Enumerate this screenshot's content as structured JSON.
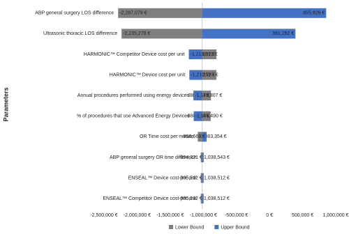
{
  "chart_data": {
    "type": "tornado",
    "y_label": "Parameters",
    "categories": [
      "ABP general surgery LOS difference",
      "Ultrasonic thoracic  LOS difference",
      "HARMONIC™ Competitor Device cost per unit",
      "HARMONIC™ Device cost per unit",
      "Annual procedures performed using energy devices",
      "% of procedures that use Advanced Energy Devices",
      "OR Time cost per minute",
      "ABP general surgery OR time difference",
      "ENSEAL™ Device cost per unit",
      "ENSEAL™ Competitor Device cost per unit"
    ],
    "series": [
      {
        "name": "Lower Bound",
        "color": "#7f7f7f",
        "values": [
          -2287079,
          -2235276,
          -802052,
          -802252,
          -884117,
          -888534,
          -1083354,
          -1038543,
          -1038512,
          -1038512
        ],
        "value_labels": [
          "-2,287,079 €",
          "-2,235,276 €",
          "-802,052 €",
          "-802,252 €",
          "-884,117 €",
          "-888,534 €",
          "-1,083,354 €",
          "-1,038,543 €",
          "-1,038,512 €",
          "-1,038,512 €"
        ]
      },
      {
        "name": "Upper Bound",
        "color": "#4472c4",
        "values": [
          855826,
          391252,
          -1219013,
          -1210787,
          -1149807,
          -1145490,
          -950669,
          -994371,
          -995512,
          -995512
        ],
        "value_labels": [
          "855,826 €",
          "391,252 €",
          "-1,219,013 €",
          "-1,210,787 €",
          "-1,149,807 €",
          "-1,145,490 €",
          "-950,669 €",
          "-994,371 €",
          "-995,512 €",
          "-995,512 €"
        ]
      }
    ],
    "xlim": [
      -2500000,
      1000000
    ],
    "xticks": [
      {
        "value": -2500000,
        "label": "-2,500,000 €"
      },
      {
        "value": -2000000,
        "label": "-2,000,000 €"
      },
      {
        "value": -1500000,
        "label": "-1,500,000 €"
      },
      {
        "value": -1000000,
        "label": "-1,000,000 €"
      },
      {
        "value": -500000,
        "label": "-500,000 €"
      },
      {
        "value": 0,
        "label": "0 €"
      },
      {
        "value": 500000,
        "label": "500,000 €"
      },
      {
        "value": 1000000,
        "label": "1,000,000 €"
      }
    ],
    "legend": "bottom"
  }
}
